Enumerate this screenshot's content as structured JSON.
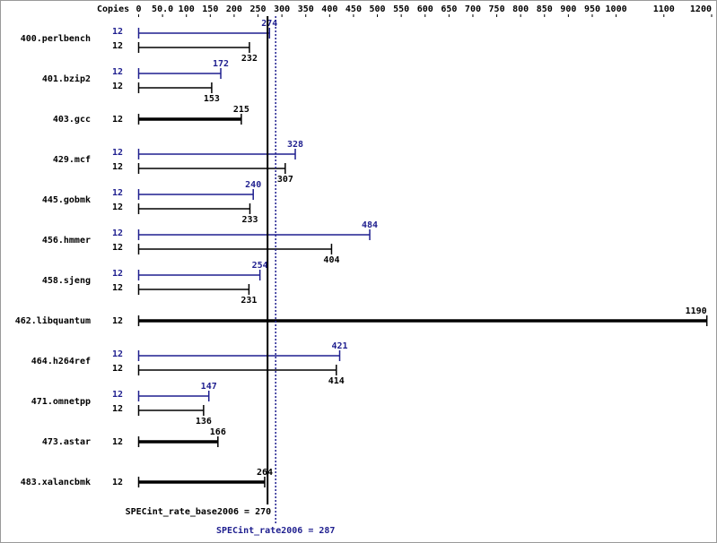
{
  "chart_data": {
    "type": "hbar",
    "copies_label": "Copies",
    "categories": [
      "400.perlbench",
      "401.bzip2",
      "403.gcc",
      "429.mcf",
      "445.gobmk",
      "456.hmmer",
      "458.sjeng",
      "462.libquantum",
      "464.h264ref",
      "471.omnetpp",
      "473.astar",
      "483.xalancbmk"
    ],
    "series": [
      {
        "color": "#1f1f8f",
        "copies": [
          12,
          12,
          null,
          12,
          12,
          12,
          12,
          null,
          12,
          12,
          null,
          null
        ],
        "values": [
          274,
          172,
          null,
          328,
          240,
          484,
          254,
          null,
          421,
          147,
          null,
          null
        ]
      },
      {
        "color": "#000000",
        "copies": [
          12,
          12,
          12,
          12,
          12,
          12,
          12,
          12,
          12,
          12,
          12,
          12
        ],
        "values": [
          232,
          153,
          215,
          307,
          233,
          404,
          231,
          1190,
          414,
          136,
          166,
          264
        ]
      }
    ],
    "xlim": [
      0,
      1200
    ],
    "xticks": [
      0,
      {
        "value": 50,
        "label": "50.0"
      },
      100,
      150,
      200,
      250,
      300,
      350,
      400,
      450,
      500,
      550,
      600,
      650,
      700,
      750,
      800,
      850,
      900,
      950,
      1000,
      1100,
      1200
    ],
    "reference_lines": [
      {
        "value": 270,
        "label": "SPECint_rate_base2006 = 270",
        "color": "#000000",
        "dashed": false
      },
      {
        "value": 287,
        "label": "SPECint_rate2006 = 287",
        "color": "#1f1f8f",
        "dashed": true
      }
    ]
  }
}
